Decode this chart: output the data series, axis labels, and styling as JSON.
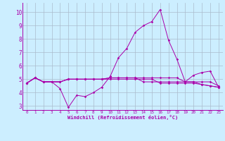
{
  "xlabel": "Windchill (Refroidissement éolien,°C)",
  "xlim": [
    -0.5,
    23.5
  ],
  "ylim": [
    2.7,
    10.7
  ],
  "yticks": [
    3,
    4,
    5,
    6,
    7,
    8,
    9,
    10
  ],
  "xticks": [
    0,
    1,
    2,
    3,
    4,
    5,
    6,
    7,
    8,
    9,
    10,
    11,
    12,
    13,
    14,
    15,
    16,
    17,
    18,
    19,
    20,
    21,
    22,
    23
  ],
  "background_color": "#cceeff",
  "grid_color": "#aabbcc",
  "line_color": "#aa00aa",
  "line1": [
    4.7,
    5.1,
    4.8,
    4.8,
    4.3,
    2.9,
    3.8,
    3.7,
    4.0,
    4.4,
    5.2,
    6.6,
    7.3,
    8.5,
    9.0,
    9.3,
    10.2,
    7.9,
    6.5,
    4.8,
    5.3,
    5.5,
    5.6,
    4.4
  ],
  "line2": [
    4.7,
    5.1,
    4.8,
    4.8,
    4.8,
    5.0,
    5.0,
    5.0,
    5.0,
    5.0,
    5.1,
    5.1,
    5.1,
    5.1,
    5.1,
    5.1,
    5.1,
    5.1,
    5.1,
    4.8,
    4.8,
    4.8,
    4.8,
    4.5
  ],
  "line3": [
    4.7,
    5.1,
    4.8,
    4.8,
    4.8,
    5.0,
    5.0,
    5.0,
    5.0,
    5.0,
    5.0,
    5.0,
    5.0,
    5.0,
    5.0,
    5.0,
    4.7,
    4.7,
    4.7,
    4.7,
    4.7,
    4.6,
    4.5,
    4.4
  ],
  "line4": [
    4.7,
    5.1,
    4.8,
    4.8,
    4.8,
    5.0,
    5.0,
    5.0,
    5.0,
    5.0,
    5.1,
    5.1,
    5.1,
    5.1,
    4.8,
    4.8,
    4.8,
    4.8,
    4.8,
    4.8,
    4.8,
    4.6,
    4.5,
    4.4
  ]
}
